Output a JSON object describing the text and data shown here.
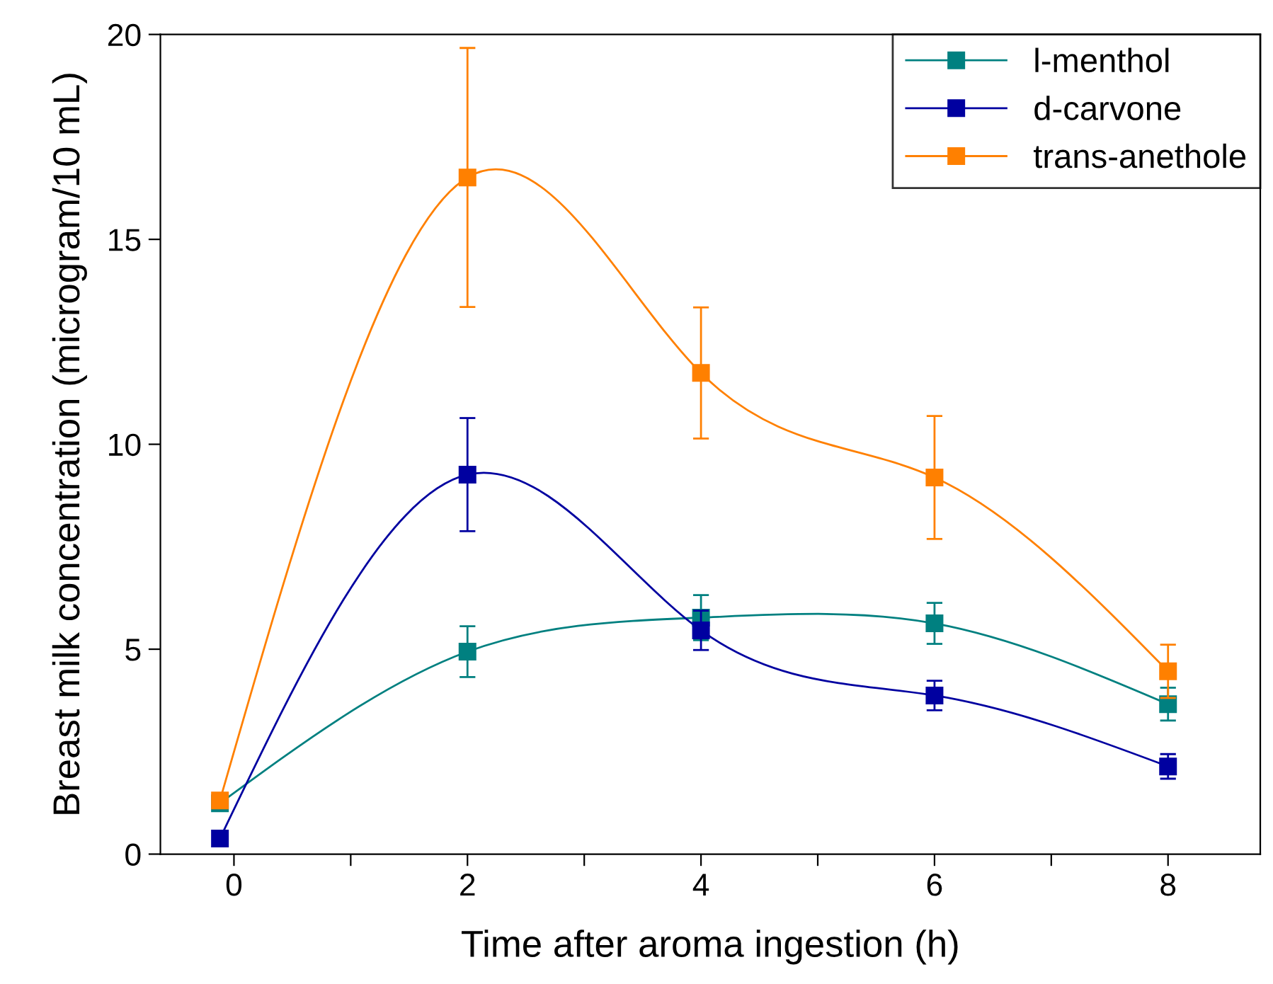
{
  "chart_data": {
    "type": "line",
    "xlabel": "Time after aroma ingestion (h)",
    "ylabel": "Breast milk concentration (microgram/10 mL)",
    "x": [
      -0.12,
      2,
      4,
      6,
      8
    ],
    "xlim": [
      -0.63,
      8.79
    ],
    "ylim": [
      0,
      20
    ],
    "xticks": [
      0,
      {
        "value": 1,
        "label": null
      },
      2,
      {
        "value": 3,
        "label": null
      },
      4,
      {
        "value": 5,
        "label": null
      },
      6,
      {
        "value": 7,
        "label": null
      },
      8
    ],
    "yticks": [
      0,
      5,
      10,
      15,
      20
    ],
    "marker": "square",
    "line_style": "solid",
    "grid": false,
    "legend": "top right",
    "series": [
      {
        "name": "l-menthol",
        "color": "#008080",
        "values": [
          1.24,
          4.94,
          5.77,
          5.63,
          3.66
        ],
        "errors": [
          0.1,
          0.62,
          0.55,
          0.5,
          0.4
        ]
      },
      {
        "name": "d-carvone",
        "color": "#0000a0",
        "values": [
          0.38,
          9.26,
          5.46,
          3.87,
          2.14
        ],
        "errors": [
          0.05,
          1.38,
          0.48,
          0.36,
          0.3
        ]
      },
      {
        "name": "trans-anethole",
        "color": "#ff8000",
        "values": [
          1.31,
          16.51,
          11.74,
          9.19,
          4.46
        ],
        "errors": [
          0.1,
          3.16,
          1.6,
          1.5,
          0.65
        ]
      }
    ]
  }
}
